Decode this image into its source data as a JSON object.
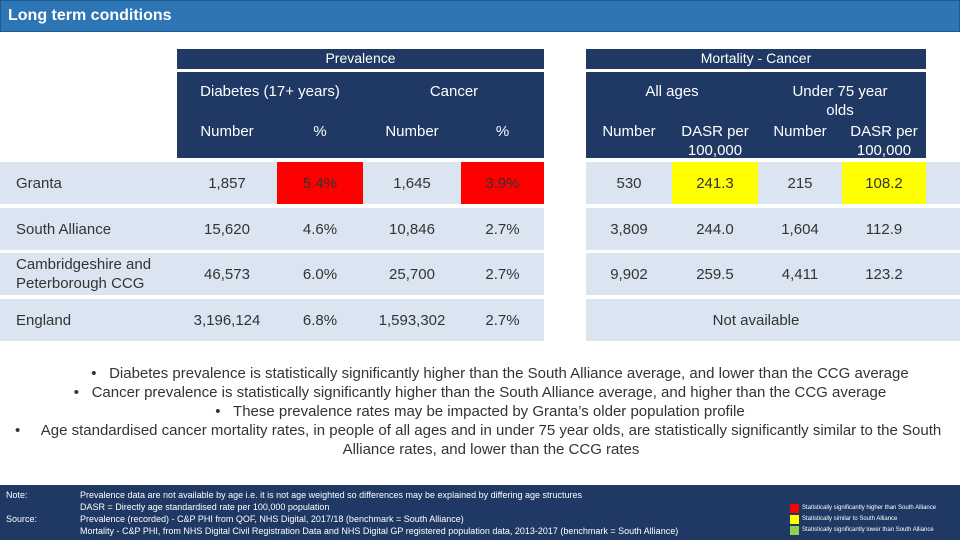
{
  "title": "Long term conditions",
  "headers": {
    "prevalence": "Prevalence",
    "mortality": "Mortality - Cancer",
    "diabetes": "Diabetes (17+ years)",
    "cancer": "Cancer",
    "all_ages": "All ages",
    "under75": "Under 75 year olds",
    "number": "Number",
    "percent": "%",
    "dasr": "DASR per 100,000"
  },
  "rows": [
    {
      "label": "Granta",
      "diab_num": "1,857",
      "diab_pct": "5.4%",
      "canc_num": "1,645",
      "canc_pct": "3.9%",
      "all_num": "530",
      "all_dasr": "241.3",
      "u75_num": "215",
      "u75_dasr": "108.2"
    },
    {
      "label": "South Alliance",
      "diab_num": "15,620",
      "diab_pct": "4.6%",
      "canc_num": "10,846",
      "canc_pct": "2.7%",
      "all_num": "3,809",
      "all_dasr": "244.0",
      "u75_num": "1,604",
      "u75_dasr": "112.9"
    },
    {
      "label": "Cambridgeshire and Peterborough CCG",
      "diab_num": "46,573",
      "diab_pct": "6.0%",
      "canc_num": "25,700",
      "canc_pct": "2.7%",
      "all_num": "9,902",
      "all_dasr": "259.5",
      "u75_num": "4,411",
      "u75_dasr": "123.2"
    },
    {
      "label": "England",
      "diab_num": "3,196,124",
      "diab_pct": "6.8%",
      "canc_num": "1,593,302",
      "canc_pct": "2.7%",
      "not_available": "Not available"
    }
  ],
  "bullets": [
    "Diabetes prevalence is statistically significantly higher than the South Alliance average, and lower than the CCG average",
    "Cancer prevalence is statistically significantly higher than the South Alliance average, and higher than the CCG average",
    "These prevalence rates may be impacted by Granta’s older population profile",
    "Age standardised cancer mortality rates, in people of all ages and in under 75 year olds, are statistically significantly similar to the South Alliance rates, and lower than the CCG rates"
  ],
  "footer": {
    "note_label": "Note:",
    "note_1": "Prevalence data are not available by age i.e. it is not age weighted so differences may be explained by differing age structures",
    "note_2": "DASR = Directly age standardised rate per 100,000 population",
    "source_label": "Source:",
    "source_1": "Prevalence (recorded) - C&P PHI from QOF, NHS Digital, 2017/18 (benchmark = South Alliance)",
    "source_2": "Mortality - C&P PHI, from NHS Digital Civil Registration Data and NHS Digital GP registered population data, 2013-2017 (benchmark = South Alliance)",
    "legend": [
      {
        "label": "Statistically significantly higher than South Alliance",
        "color": "#ff0000"
      },
      {
        "label": "Statistically similar to South Alliance",
        "color": "#ffff00"
      },
      {
        "label": "Statistically significantly lower than South Alliance",
        "color": "#92d050"
      }
    ]
  },
  "colors": {
    "accent": "#2e75b6",
    "header": "#1f3864",
    "row": "#dbe5f1",
    "red": "#ff0000",
    "yellow": "#ffff00"
  }
}
